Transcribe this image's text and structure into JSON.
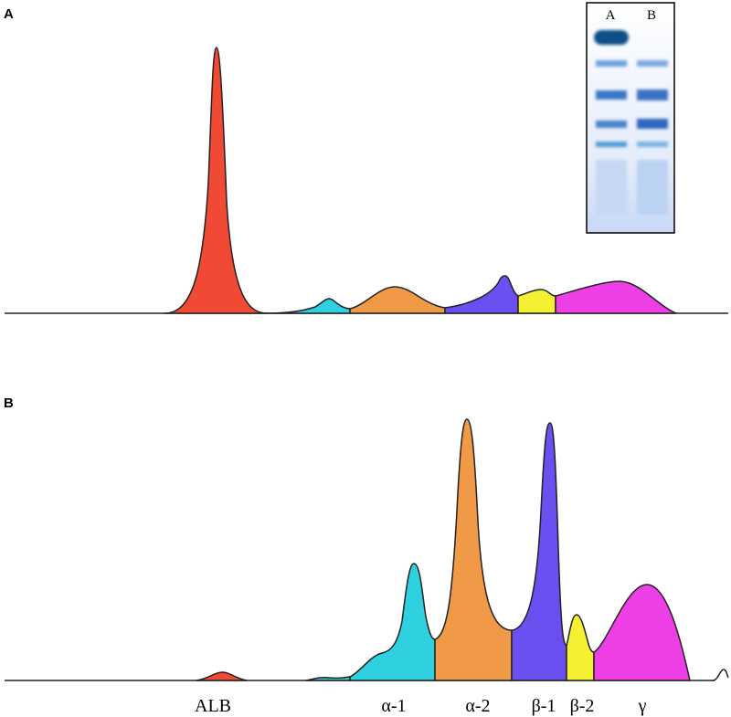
{
  "panels": [
    {
      "label": "A"
    },
    {
      "label": "B"
    }
  ],
  "gel": {
    "lanes": [
      "A",
      "B"
    ]
  },
  "fractions": [
    "ALB",
    "α-1",
    "α-2",
    "β-1",
    "β-2",
    "γ"
  ]
}
